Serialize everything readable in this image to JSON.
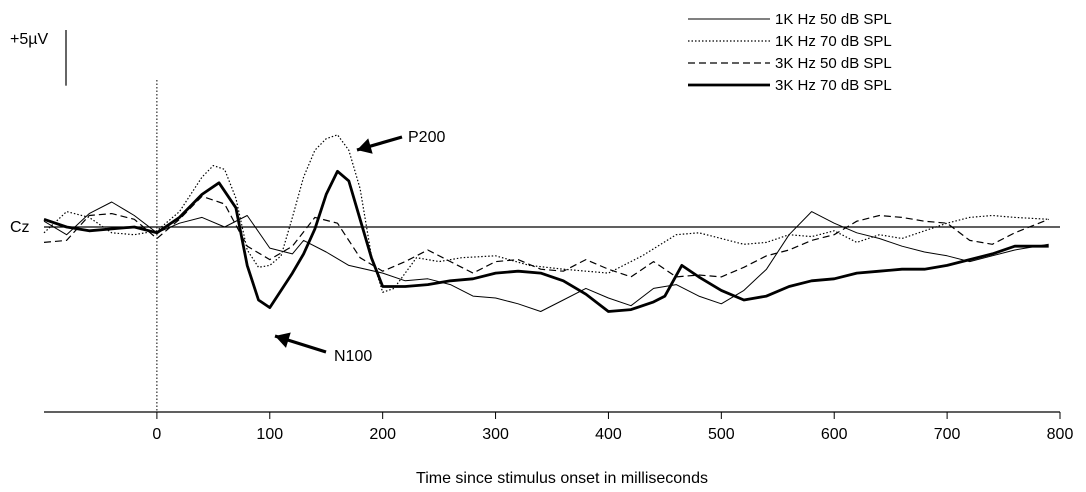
{
  "chart_data": {
    "type": "line",
    "title": "",
    "xlabel": "Time since stimulus onset in milliseconds",
    "ylabel": "",
    "channel_label": "Cz",
    "scale_bar_label": "+5µV",
    "scale_bar_value_uV": 5,
    "xlim": [
      -100,
      800
    ],
    "ylim": [
      -8.5,
      8.5
    ],
    "x_ticks": [
      0,
      100,
      200,
      300,
      400,
      500,
      600,
      700,
      800
    ],
    "stimulus_onset_ms": 0,
    "grid": false,
    "legend_position": "top-right",
    "annotations": [
      {
        "text": "P200",
        "x": 165,
        "y": 2.6
      },
      {
        "text": "N100",
        "x": 98,
        "y": -4.5
      }
    ],
    "series": [
      {
        "name": "1K Hz 50 dB SPL",
        "style": "solid-thin",
        "x": [
          -100,
          -80,
          -60,
          -40,
          -20,
          0,
          20,
          40,
          60,
          80,
          100,
          120,
          130,
          150,
          170,
          200,
          220,
          240,
          260,
          280,
          300,
          320,
          340,
          360,
          380,
          400,
          420,
          440,
          460,
          480,
          500,
          520,
          540,
          560,
          580,
          600,
          620,
          640,
          660,
          680,
          700,
          720,
          740,
          760,
          790
        ],
        "values": [
          0.3,
          -0.4,
          0.7,
          1.3,
          0.6,
          -0.3,
          0.2,
          0.5,
          0.0,
          0.6,
          -1.1,
          -1.4,
          -0.7,
          -1.3,
          -2.0,
          -2.4,
          -2.8,
          -2.7,
          -3.0,
          -3.6,
          -3.7,
          -4.0,
          -4.4,
          -3.8,
          -3.2,
          -3.7,
          -4.1,
          -3.2,
          -3.0,
          -3.6,
          -4.0,
          -3.3,
          -2.2,
          -0.4,
          0.8,
          0.2,
          -0.3,
          -0.6,
          -1.0,
          -1.3,
          -1.5,
          -1.8,
          -1.5,
          -1.2,
          -0.9
        ]
      },
      {
        "name": "1K Hz 70 dB SPL",
        "style": "dotted",
        "x": [
          -100,
          -80,
          -60,
          -40,
          -20,
          0,
          20,
          40,
          50,
          60,
          70,
          80,
          90,
          100,
          110,
          120,
          130,
          140,
          150,
          160,
          170,
          180,
          190,
          200,
          210,
          230,
          250,
          270,
          300,
          330,
          360,
          400,
          430,
          460,
          480,
          500,
          520,
          540,
          560,
          580,
          600,
          620,
          640,
          660,
          680,
          700,
          720,
          740,
          760,
          790
        ],
        "values": [
          -0.3,
          0.8,
          0.5,
          -0.3,
          -0.4,
          -0.2,
          0.8,
          2.6,
          3.2,
          3.0,
          1.5,
          -1.2,
          -2.1,
          -2.0,
          -1.5,
          0.5,
          2.6,
          4.0,
          4.6,
          4.8,
          4.0,
          2.0,
          -1.5,
          -3.4,
          -3.2,
          -1.6,
          -1.8,
          -1.6,
          -1.5,
          -2.0,
          -2.2,
          -2.4,
          -1.5,
          -0.4,
          -0.3,
          -0.6,
          -0.9,
          -0.8,
          -0.4,
          -0.5,
          -0.2,
          -0.8,
          -0.4,
          -0.6,
          -0.2,
          0.2,
          0.5,
          0.6,
          0.5,
          0.4
        ]
      },
      {
        "name": "3K Hz 50 dB SPL",
        "style": "dashed",
        "x": [
          -100,
          -80,
          -60,
          -40,
          -20,
          0,
          20,
          40,
          60,
          80,
          100,
          120,
          140,
          160,
          180,
          200,
          220,
          240,
          260,
          280,
          300,
          320,
          340,
          360,
          380,
          400,
          420,
          440,
          460,
          480,
          500,
          520,
          540,
          560,
          580,
          600,
          620,
          640,
          660,
          680,
          700,
          720,
          740,
          760,
          790
        ],
        "values": [
          -0.8,
          -0.7,
          0.6,
          0.7,
          0.4,
          -0.6,
          0.4,
          1.6,
          1.2,
          -1.0,
          -1.7,
          -1.0,
          0.5,
          0.2,
          -1.6,
          -2.3,
          -1.8,
          -1.2,
          -1.8,
          -2.4,
          -1.8,
          -1.7,
          -2.2,
          -2.3,
          -1.7,
          -2.2,
          -2.6,
          -1.8,
          -2.6,
          -2.5,
          -2.6,
          -2.1,
          -1.5,
          -1.2,
          -0.7,
          -0.4,
          0.3,
          0.6,
          0.5,
          0.3,
          0.2,
          -0.7,
          -0.9,
          -0.3,
          0.4
        ]
      },
      {
        "name": "3K Hz 70 dB SPL",
        "style": "solid-bold",
        "x": [
          -100,
          -80,
          -60,
          -40,
          -20,
          0,
          20,
          40,
          55,
          70,
          80,
          90,
          100,
          110,
          120,
          130,
          140,
          150,
          160,
          170,
          180,
          190,
          200,
          220,
          240,
          260,
          280,
          300,
          320,
          340,
          360,
          380,
          400,
          420,
          440,
          450,
          465,
          480,
          500,
          520,
          540,
          560,
          580,
          600,
          620,
          640,
          660,
          680,
          700,
          720,
          740,
          760,
          790
        ],
        "values": [
          0.4,
          0.0,
          -0.2,
          -0.1,
          0.0,
          -0.3,
          0.5,
          1.7,
          2.3,
          1.0,
          -2.0,
          -3.8,
          -4.2,
          -3.3,
          -2.4,
          -1.4,
          -0.1,
          1.7,
          2.9,
          2.4,
          0.4,
          -1.6,
          -3.1,
          -3.1,
          -3.0,
          -2.8,
          -2.7,
          -2.4,
          -2.3,
          -2.4,
          -2.8,
          -3.5,
          -4.4,
          -4.3,
          -3.9,
          -3.6,
          -2.0,
          -2.6,
          -3.3,
          -3.8,
          -3.6,
          -3.1,
          -2.8,
          -2.7,
          -2.4,
          -2.3,
          -2.2,
          -2.2,
          -2.0,
          -1.7,
          -1.4,
          -1.0,
          -1.0
        ]
      }
    ]
  }
}
